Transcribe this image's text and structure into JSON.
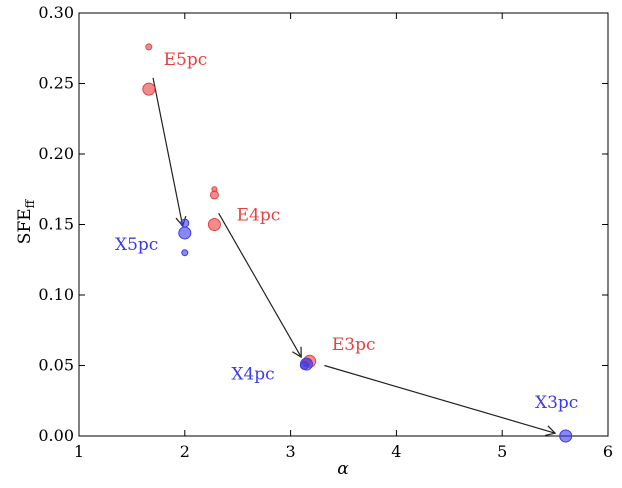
{
  "chart_data": {
    "type": "scatter",
    "xlabel": "α",
    "ylabel": "SFE",
    "ylabel_sub": "ff",
    "xlim": [
      1,
      6
    ],
    "ylim": [
      0,
      0.3
    ],
    "xticks": [
      1,
      2,
      3,
      4,
      5,
      6
    ],
    "yticks": [
      0.0,
      0.05,
      0.1,
      0.15,
      0.2,
      0.25,
      0.3
    ],
    "xtick_labels": [
      "1",
      "2",
      "3",
      "4",
      "5",
      "6"
    ],
    "ytick_labels": [
      "0.00",
      "0.05",
      "0.10",
      "0.15",
      "0.20",
      "0.25",
      "0.30"
    ],
    "grid": false,
    "reference_line_y": 0,
    "colors": {
      "E": "#e84040",
      "X": "#3a3aeb",
      "arrow": "#222222"
    },
    "points": [
      {
        "group": "E",
        "x": 1.66,
        "y": 0.276,
        "size": 3
      },
      {
        "group": "E",
        "x": 1.66,
        "y": 0.246,
        "size": 6
      },
      {
        "group": "E",
        "x": 2.28,
        "y": 0.175,
        "size": 2.5
      },
      {
        "group": "E",
        "x": 2.28,
        "y": 0.171,
        "size": 4
      },
      {
        "group": "E",
        "x": 2.28,
        "y": 0.15,
        "size": 6
      },
      {
        "group": "E",
        "x": 3.18,
        "y": 0.053,
        "size": 6
      },
      {
        "group": "E",
        "x": 3.15,
        "y": 0.052,
        "size": 4
      },
      {
        "group": "X",
        "x": 2.0,
        "y": 0.151,
        "size": 4
      },
      {
        "group": "X",
        "x": 2.0,
        "y": 0.144,
        "size": 6
      },
      {
        "group": "X",
        "x": 2.0,
        "y": 0.13,
        "size": 3
      },
      {
        "group": "X",
        "x": 3.15,
        "y": 0.051,
        "size": 6
      },
      {
        "group": "X",
        "x": 3.13,
        "y": 0.05,
        "size": 4
      },
      {
        "group": "X",
        "x": 5.6,
        "y": 0.0,
        "size": 6
      }
    ],
    "arrows": [
      {
        "from": [
          1.7,
          0.254
        ],
        "to": [
          1.98,
          0.149
        ]
      },
      {
        "from": [
          2.32,
          0.158
        ],
        "to": [
          3.1,
          0.056
        ]
      },
      {
        "from": [
          3.32,
          0.05
        ],
        "to": [
          5.5,
          0.002
        ]
      }
    ],
    "annotations": [
      {
        "text": "E5pc",
        "group": "E",
        "x": 1.8,
        "y": 0.263
      },
      {
        "text": "E4pc",
        "group": "E",
        "x": 2.49,
        "y": 0.153
      },
      {
        "text": "E3pc",
        "group": "E",
        "x": 3.39,
        "y": 0.061
      },
      {
        "text": "X5pc",
        "group": "X",
        "x": 1.34,
        "y": 0.132
      },
      {
        "text": "X4pc",
        "group": "X",
        "x": 2.44,
        "y": 0.04
      },
      {
        "text": "X3pc",
        "group": "X",
        "x": 5.31,
        "y": 0.02
      }
    ]
  }
}
